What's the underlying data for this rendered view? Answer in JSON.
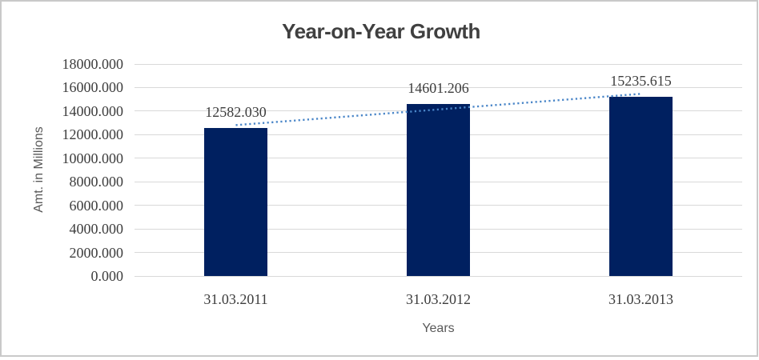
{
  "frame": {
    "border_color": "#c9c9c9",
    "background_color": "#ffffff"
  },
  "chart_data": {
    "type": "bar",
    "title": "Year-on-Year Growth",
    "xlabel": "Years",
    "ylabel": "Amt. in Millions",
    "categories": [
      "31.03.2011",
      "31.03.2012",
      "31.03.2013"
    ],
    "values": [
      12582.03,
      14601.206,
      15235.615
    ],
    "data_labels": [
      "12582.030",
      "14601.206",
      "15235.615"
    ],
    "ylim": [
      0,
      18000
    ],
    "ytick_step": 2000,
    "ytick_labels": [
      "0.000",
      "2000.000",
      "4000.000",
      "6000.000",
      "8000.000",
      "10000.000",
      "12000.000",
      "14000.000",
      "16000.000",
      "18000.000"
    ],
    "grid": true,
    "legend": "none",
    "colors": {
      "bar": "#002060",
      "trendline": "#4a86c8",
      "gridline": "#d9d9d9",
      "title_text": "#404040",
      "axis_title_text": "#595959",
      "tick_text": "#3d3d3d"
    },
    "trendline": {
      "type": "linear",
      "style": "dotted"
    }
  }
}
